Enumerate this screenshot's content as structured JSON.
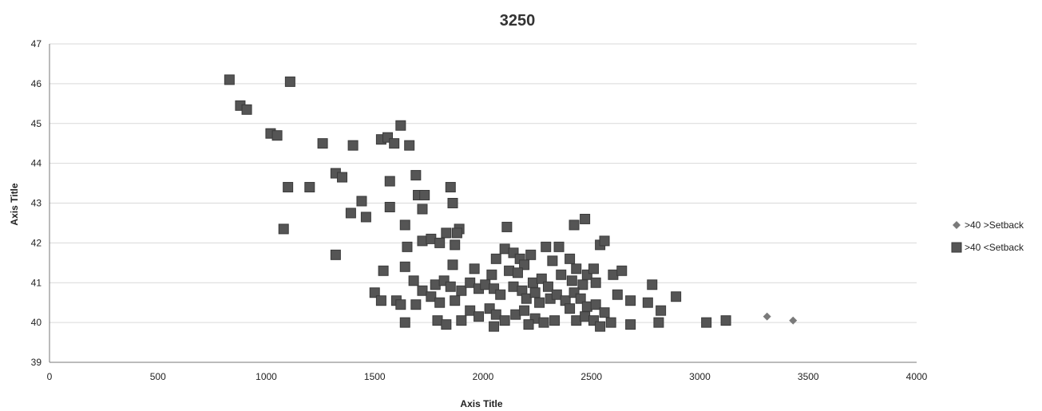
{
  "chart_data": {
    "type": "scatter",
    "title": "3250",
    "xlabel": "Axis Title",
    "ylabel": "Axis Title",
    "xlim": [
      0,
      4000
    ],
    "ylim": [
      39,
      47
    ],
    "xticks": [
      "0",
      "500",
      "1000",
      "1500",
      "2000",
      "2500",
      "3000",
      "3500",
      "4000"
    ],
    "yticks": [
      "39",
      "40",
      "41",
      "42",
      "43",
      "44",
      "45",
      "46",
      "47"
    ],
    "grid": true,
    "legend_position": "right",
    "series": [
      {
        "name": ">40 >Setback",
        "marker": "diamond",
        "color": "#7a7a7a",
        "points": [
          [
            3310,
            40.15
          ],
          [
            3430,
            40.05
          ]
        ]
      },
      {
        "name": ">40 <Setback",
        "marker": "square",
        "color": "#555555",
        "points": [
          [
            830,
            46.1
          ],
          [
            1110,
            46.05
          ],
          [
            880,
            45.45
          ],
          [
            910,
            45.35
          ],
          [
            1020,
            44.75
          ],
          [
            1050,
            44.7
          ],
          [
            1260,
            44.5
          ],
          [
            1400,
            44.45
          ],
          [
            1530,
            44.6
          ],
          [
            1560,
            44.65
          ],
          [
            1590,
            44.5
          ],
          [
            1620,
            44.95
          ],
          [
            1660,
            44.45
          ],
          [
            1320,
            43.75
          ],
          [
            1350,
            43.65
          ],
          [
            1570,
            43.55
          ],
          [
            1690,
            43.7
          ],
          [
            1100,
            43.4
          ],
          [
            1200,
            43.4
          ],
          [
            1700,
            43.2
          ],
          [
            1730,
            43.2
          ],
          [
            1850,
            43.4
          ],
          [
            1860,
            43.0
          ],
          [
            1440,
            43.05
          ],
          [
            1390,
            42.75
          ],
          [
            1460,
            42.65
          ],
          [
            1570,
            42.9
          ],
          [
            1720,
            42.85
          ],
          [
            1080,
            42.35
          ],
          [
            1640,
            42.45
          ],
          [
            1890,
            42.35
          ],
          [
            2110,
            42.4
          ],
          [
            2420,
            42.45
          ],
          [
            2470,
            42.6
          ],
          [
            1880,
            42.25
          ],
          [
            1320,
            41.7
          ],
          [
            1650,
            41.9
          ],
          [
            1720,
            42.05
          ],
          [
            1760,
            42.1
          ],
          [
            1800,
            42.0
          ],
          [
            1830,
            42.25
          ],
          [
            1870,
            41.95
          ],
          [
            2060,
            41.6
          ],
          [
            2100,
            41.85
          ],
          [
            2140,
            41.75
          ],
          [
            2170,
            41.6
          ],
          [
            2190,
            41.45
          ],
          [
            2220,
            41.7
          ],
          [
            2290,
            41.9
          ],
          [
            2320,
            41.55
          ],
          [
            2350,
            41.9
          ],
          [
            2400,
            41.6
          ],
          [
            2430,
            41.35
          ],
          [
            2480,
            41.2
          ],
          [
            2510,
            41.35
          ],
          [
            2540,
            41.95
          ],
          [
            2560,
            42.05
          ],
          [
            1540,
            41.3
          ],
          [
            1640,
            41.4
          ],
          [
            1860,
            41.45
          ],
          [
            1960,
            41.35
          ],
          [
            2040,
            41.2
          ],
          [
            2120,
            41.3
          ],
          [
            2160,
            41.25
          ],
          [
            2230,
            41.0
          ],
          [
            2270,
            41.1
          ],
          [
            2300,
            40.9
          ],
          [
            2360,
            41.2
          ],
          [
            2410,
            41.05
          ],
          [
            2460,
            40.95
          ],
          [
            2520,
            41.0
          ],
          [
            2600,
            41.2
          ],
          [
            2640,
            41.3
          ],
          [
            2780,
            40.95
          ],
          [
            1680,
            41.05
          ],
          [
            1720,
            40.8
          ],
          [
            1780,
            40.95
          ],
          [
            1820,
            41.05
          ],
          [
            1850,
            40.9
          ],
          [
            1900,
            40.8
          ],
          [
            1940,
            41.0
          ],
          [
            1980,
            40.85
          ],
          [
            2010,
            40.95
          ],
          [
            2050,
            40.85
          ],
          [
            2080,
            40.7
          ],
          [
            2140,
            40.9
          ],
          [
            2180,
            40.8
          ],
          [
            2200,
            40.6
          ],
          [
            2240,
            40.75
          ],
          [
            2260,
            40.5
          ],
          [
            2310,
            40.6
          ],
          [
            2340,
            40.7
          ],
          [
            2380,
            40.55
          ],
          [
            2420,
            40.75
          ],
          [
            2450,
            40.6
          ],
          [
            2480,
            40.4
          ],
          [
            2520,
            40.45
          ],
          [
            2560,
            40.25
          ],
          [
            2620,
            40.7
          ],
          [
            2680,
            40.55
          ],
          [
            2760,
            40.5
          ],
          [
            2820,
            40.3
          ],
          [
            2890,
            40.65
          ],
          [
            1500,
            40.75
          ],
          [
            1530,
            40.55
          ],
          [
            1600,
            40.55
          ],
          [
            1620,
            40.45
          ],
          [
            1690,
            40.45
          ],
          [
            1760,
            40.65
          ],
          [
            1800,
            40.5
          ],
          [
            1870,
            40.55
          ],
          [
            1940,
            40.3
          ],
          [
            1980,
            40.15
          ],
          [
            2030,
            40.35
          ],
          [
            2060,
            40.2
          ],
          [
            2100,
            40.05
          ],
          [
            2150,
            40.2
          ],
          [
            2190,
            40.3
          ],
          [
            2240,
            40.1
          ],
          [
            2280,
            40.0
          ],
          [
            2330,
            40.05
          ],
          [
            2400,
            40.35
          ],
          [
            2430,
            40.05
          ],
          [
            2470,
            40.15
          ],
          [
            2510,
            40.05
          ],
          [
            2540,
            39.9
          ],
          [
            2590,
            40.0
          ],
          [
            2680,
            39.95
          ],
          [
            2810,
            40.0
          ],
          [
            3030,
            40.0
          ],
          [
            3120,
            40.05
          ],
          [
            1640,
            40.0
          ],
          [
            1790,
            40.05
          ],
          [
            1830,
            39.95
          ],
          [
            1900,
            40.05
          ],
          [
            2050,
            39.9
          ],
          [
            2210,
            39.95
          ]
        ]
      }
    ]
  }
}
